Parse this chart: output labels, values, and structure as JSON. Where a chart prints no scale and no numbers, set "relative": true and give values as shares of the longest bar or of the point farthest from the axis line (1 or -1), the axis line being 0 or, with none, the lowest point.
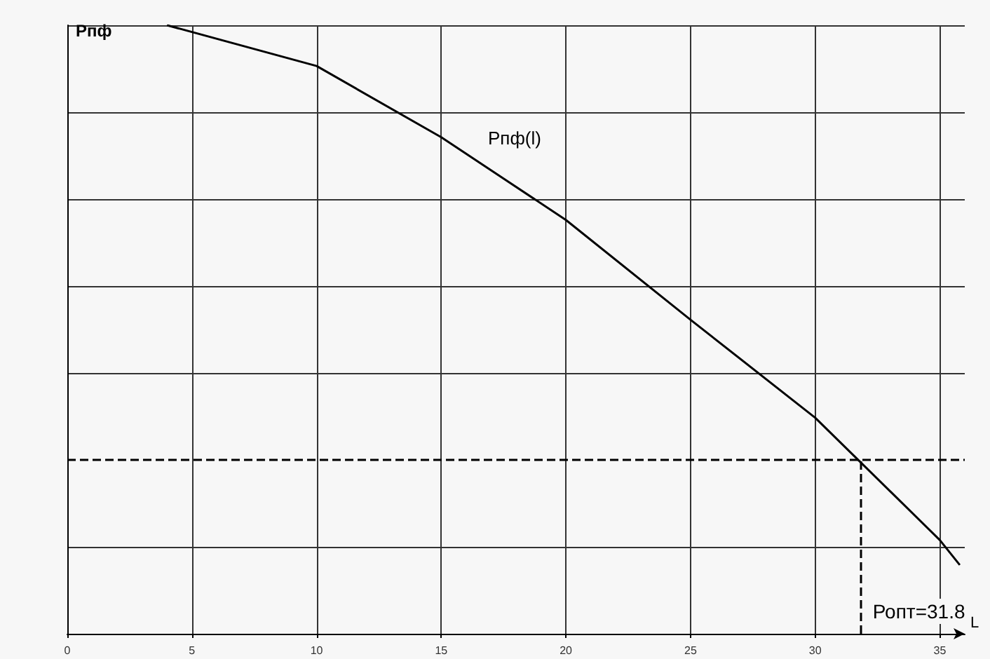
{
  "chart_data": {
    "type": "line",
    "relative": true,
    "ylabel": "Рпф",
    "xlabel": "L",
    "x": [
      4,
      10,
      15,
      20,
      25,
      30,
      35,
      35.8
    ],
    "series": [
      {
        "color": "#000000",
        "values": [
          1.0,
          0.933,
          0.816,
          0.68,
          0.516,
          0.355,
          0.154,
          0.113
        ]
      }
    ],
    "xlim": [
      0,
      36
    ],
    "xticks": [
      0,
      5,
      10,
      15,
      20,
      25,
      30,
      35
    ],
    "grid": true,
    "marker": "none",
    "line_style": "solid",
    "ref_lines": [
      {
        "axis": "y",
        "value": 0.286,
        "line_style": "dashed",
        "color": "#000000"
      },
      {
        "axis": "x",
        "value": 31.8,
        "label": "Ропт=31.8",
        "line_style": "dashed",
        "color": "#000000"
      }
    ],
    "annotations": [
      "Рпф(l)"
    ]
  }
}
